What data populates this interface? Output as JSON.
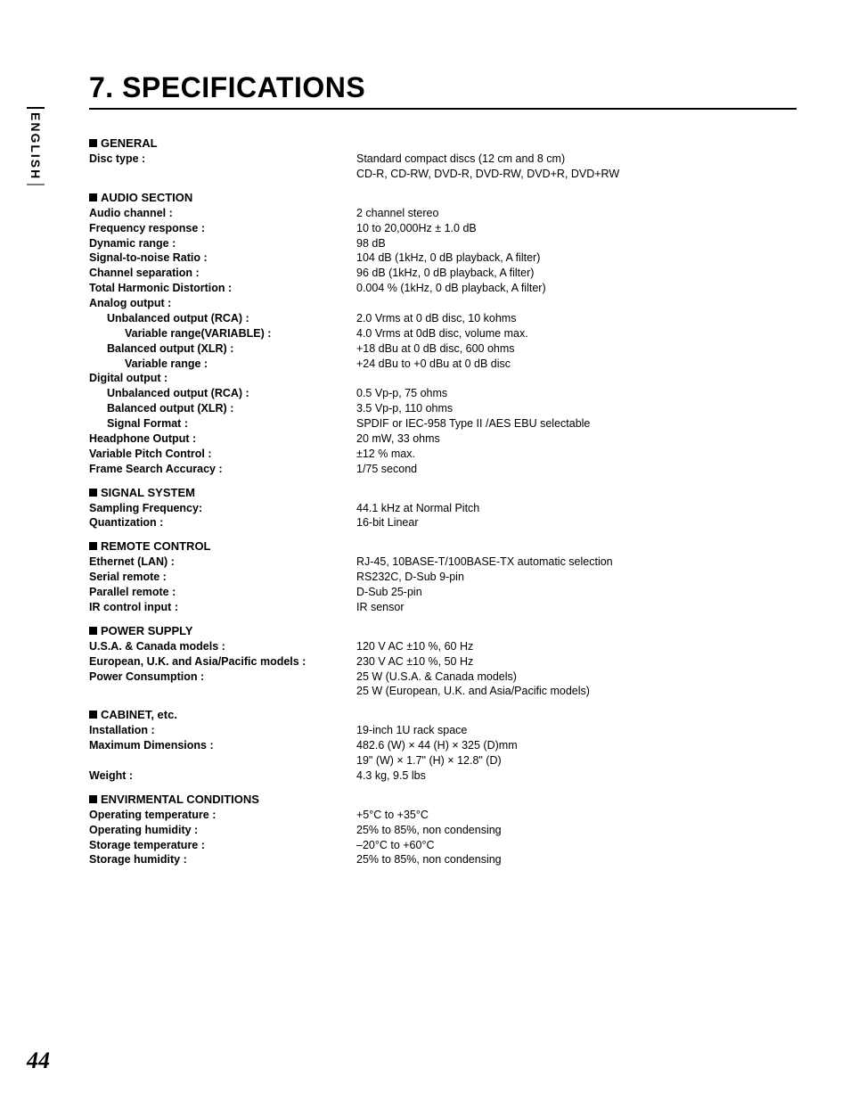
{
  "side_tab": "ENGLISH",
  "title": "7. SPECIFICATIONS",
  "page_number": "44",
  "sections": [
    {
      "header": "GENERAL",
      "rows": [
        {
          "label": "Disc type :",
          "value": "Standard compact discs (12 cm and 8 cm)",
          "indent": 0
        },
        {
          "label": "",
          "value": "CD-R, CD-RW, DVD-R, DVD-RW, DVD+R, DVD+RW",
          "indent": 0
        }
      ]
    },
    {
      "header": "AUDIO SECTION",
      "rows": [
        {
          "label": "Audio channel :",
          "value": "2 channel stereo",
          "indent": 0
        },
        {
          "label": "Frequency response :",
          "value": "10 to 20,000Hz  ± 1.0 dB",
          "indent": 0
        },
        {
          "label": "Dynamic range :",
          "value": "98 dB",
          "indent": 0
        },
        {
          "label": "Signal-to-noise Ratio :",
          "value": "104 dB (1kHz, 0 dB playback, A filter)",
          "indent": 0
        },
        {
          "label": "Channel separation :",
          "value": "96 dB (1kHz, 0 dB playback, A filter)",
          "indent": 0
        },
        {
          "label": "Total Harmonic Distortion :",
          "value": "0.004 % (1kHz, 0 dB playback, A filter)",
          "indent": 0
        },
        {
          "label": "Analog output :",
          "value": "",
          "indent": 0
        },
        {
          "label": "Unbalanced output (RCA) :",
          "value": "2.0 Vrms at 0 dB disc, 10 kohms",
          "indent": 1
        },
        {
          "label": "Variable range(VARIABLE) :",
          "value": "4.0 Vrms at 0dB disc, volume max.",
          "indent": 2
        },
        {
          "label": "Balanced output (XLR) :",
          "value": "+18 dBu at 0 dB disc, 600 ohms",
          "indent": 1
        },
        {
          "label": "Variable range :",
          "value": "+24 dBu to +0 dBu at 0 dB disc",
          "indent": 2
        },
        {
          "label": "Digital output :",
          "value": "",
          "indent": 0
        },
        {
          "label": "Unbalanced output (RCA) :",
          "value": "0.5 Vp-p, 75 ohms",
          "indent": 1
        },
        {
          "label": "Balanced output (XLR) :",
          "value": "3.5 Vp-p, 110 ohms",
          "indent": 1
        },
        {
          "label": "Signal Format :",
          "value": "SPDIF or IEC-958 Type II /AES EBU selectable",
          "indent": 1
        },
        {
          "label": "Headphone Output :",
          "value": "20 mW, 33 ohms",
          "indent": 0
        },
        {
          "label": "Variable Pitch Control :",
          "value": "±12 % max.",
          "indent": 0
        },
        {
          "label": "Frame Search Accuracy :",
          "value": "1/75 second",
          "indent": 0
        }
      ]
    },
    {
      "header": "SIGNAL SYSTEM",
      "rows": [
        {
          "label": "Sampling Frequency:",
          "value": "44.1 kHz at Normal Pitch",
          "indent": 0
        },
        {
          "label": "Quantization :",
          "value": "16-bit Linear",
          "indent": 0
        }
      ]
    },
    {
      "header": "REMOTE CONTROL",
      "rows": [
        {
          "label": "Ethernet (LAN) :",
          "value": "RJ-45, 10BASE-T/100BASE-TX automatic selection",
          "indent": 0
        },
        {
          "label": "Serial remote :",
          "value": "RS232C, D-Sub 9-pin",
          "indent": 0
        },
        {
          "label": "Parallel remote :",
          "value": "D-Sub 25-pin",
          "indent": 0
        },
        {
          "label": "IR control input :",
          "value": "IR sensor",
          "indent": 0
        }
      ]
    },
    {
      "header": "POWER SUPPLY",
      "rows": [
        {
          "label": "U.S.A. & Canada models :",
          "value": "120 V AC ±10 %, 60 Hz",
          "indent": 0
        },
        {
          "label": "European, U.K. and Asia/Pacific models :",
          "value": "230 V AC ±10 %, 50 Hz",
          "indent": 0
        },
        {
          "label": "Power Consumption :",
          "value": "25 W (U.S.A. & Canada models)",
          "indent": 0
        },
        {
          "label": "",
          "value": "25 W (European, U.K. and Asia/Pacific models)",
          "indent": 0
        }
      ]
    },
    {
      "header": "CABINET, etc.",
      "rows": [
        {
          "label": "Installation :",
          "value": "19-inch 1U rack space",
          "indent": 0
        },
        {
          "label": "Maximum Dimensions :",
          "value": "482.6 (W) × 44 (H) × 325 (D)mm",
          "indent": 0
        },
        {
          "label": "",
          "value": "19\" (W) × 1.7\" (H) × 12.8\" (D)",
          "indent": 0
        },
        {
          "label": "Weight :",
          "value": "4.3 kg, 9.5 lbs",
          "indent": 0
        }
      ]
    },
    {
      "header": "ENVIRMENTAL CONDITIONS",
      "rows": [
        {
          "label": "Operating temperature :",
          "value": "+5°C to +35°C",
          "indent": 0
        },
        {
          "label": "Operating humidity :",
          "value": "25% to 85%, non condensing",
          "indent": 0
        },
        {
          "label": "Storage temperature :",
          "value": "–20°C to +60°C",
          "indent": 0
        },
        {
          "label": "Storage humidity :",
          "value": "25% to 85%, non condensing",
          "indent": 0
        }
      ]
    }
  ]
}
